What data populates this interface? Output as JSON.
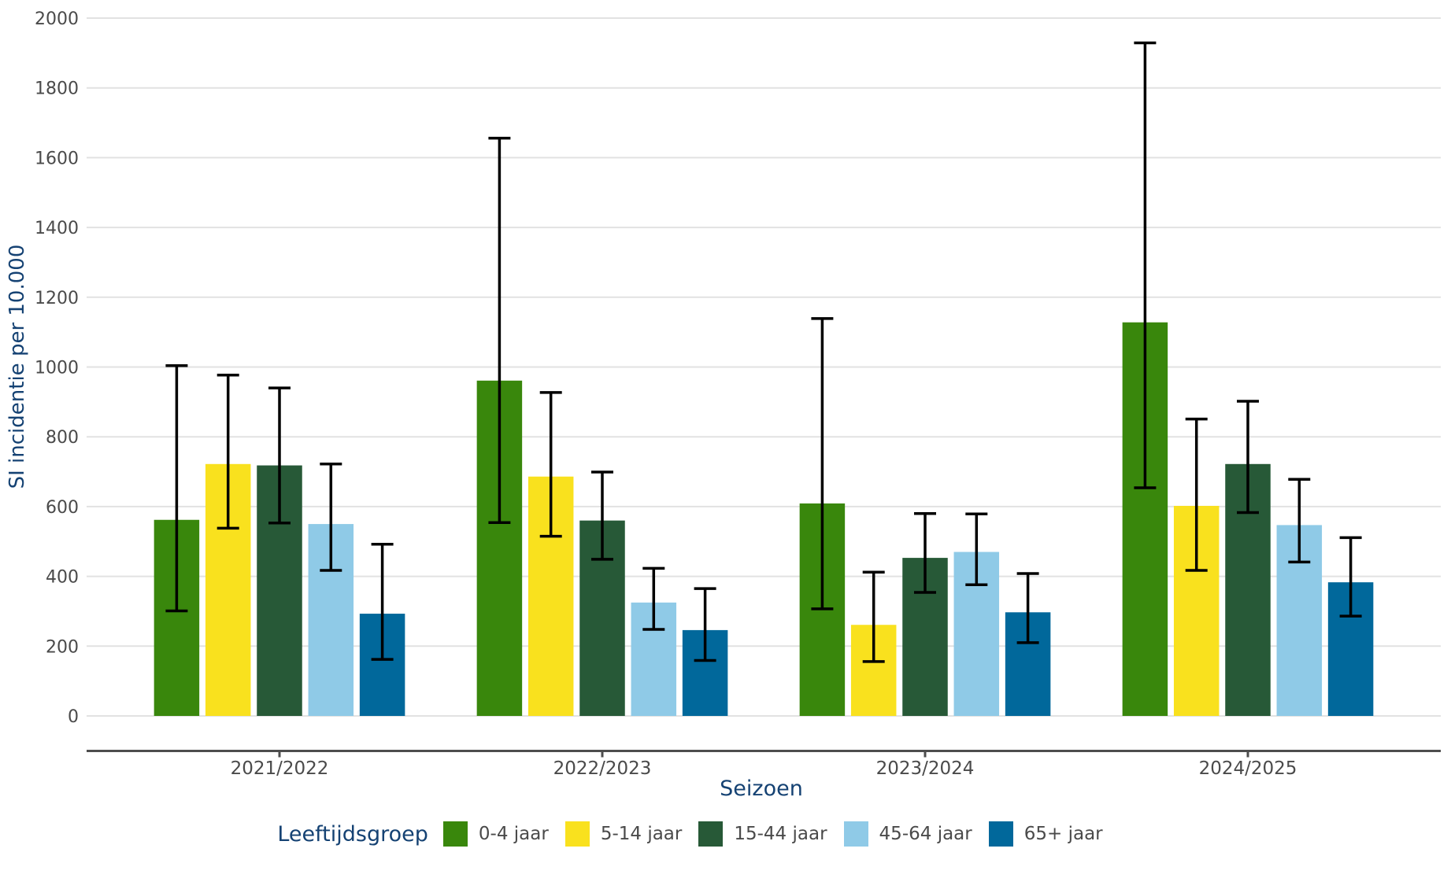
{
  "legend": {
    "title": "Leeftijdsgroep"
  },
  "style": {
    "background": "#ffffff",
    "grid_color": "#e2e2e2",
    "axis_line_color": "#4d4d4d",
    "tick_label_color": "#4a4a4a",
    "axis_title_color": "#154273",
    "error_bar_color": "#000000"
  },
  "chart_data": {
    "type": "bar",
    "title": "",
    "xlabel": "Seizoen",
    "ylabel": "SI incidentie per 10.000",
    "categories": [
      "2021/2022",
      "2022/2023",
      "2023/2024",
      "2024/2025"
    ],
    "series": [
      {
        "name": "0-4 jaar",
        "color": "#39870c",
        "values": [
          562,
          961,
          609,
          1128
        ],
        "ci_low": [
          301,
          554,
          307,
          654
        ],
        "ci_high": [
          1004,
          1656,
          1139,
          1929
        ]
      },
      {
        "name": "5-14 jaar",
        "color": "#f9e11e",
        "values": [
          722,
          686,
          261,
          602
        ],
        "ci_low": [
          538,
          515,
          156,
          417
        ],
        "ci_high": [
          977,
          927,
          412,
          851
        ]
      },
      {
        "name": "15-44 jaar",
        "color": "#275937",
        "values": [
          718,
          560,
          453,
          722
        ],
        "ci_low": [
          553,
          449,
          354,
          583
        ],
        "ci_high": [
          940,
          699,
          580,
          902
        ]
      },
      {
        "name": "45-64 jaar",
        "color": "#8fcae7",
        "values": [
          550,
          325,
          470,
          547
        ],
        "ci_low": [
          417,
          248,
          376,
          441
        ],
        "ci_high": [
          722,
          423,
          579,
          678
        ]
      },
      {
        "name": "65+ jaar",
        "color": "#01689b",
        "values": [
          293,
          246,
          297,
          383
        ],
        "ci_low": [
          162,
          159,
          210,
          286
        ],
        "ci_high": [
          492,
          365,
          408,
          511
        ]
      }
    ],
    "ylim": [
      0,
      2000
    ],
    "yticks": [
      0,
      200,
      400,
      600,
      800,
      1000,
      1200,
      1400,
      1600,
      1800,
      2000
    ],
    "grid": true,
    "error_bars": true,
    "legend_position": "bottom"
  }
}
